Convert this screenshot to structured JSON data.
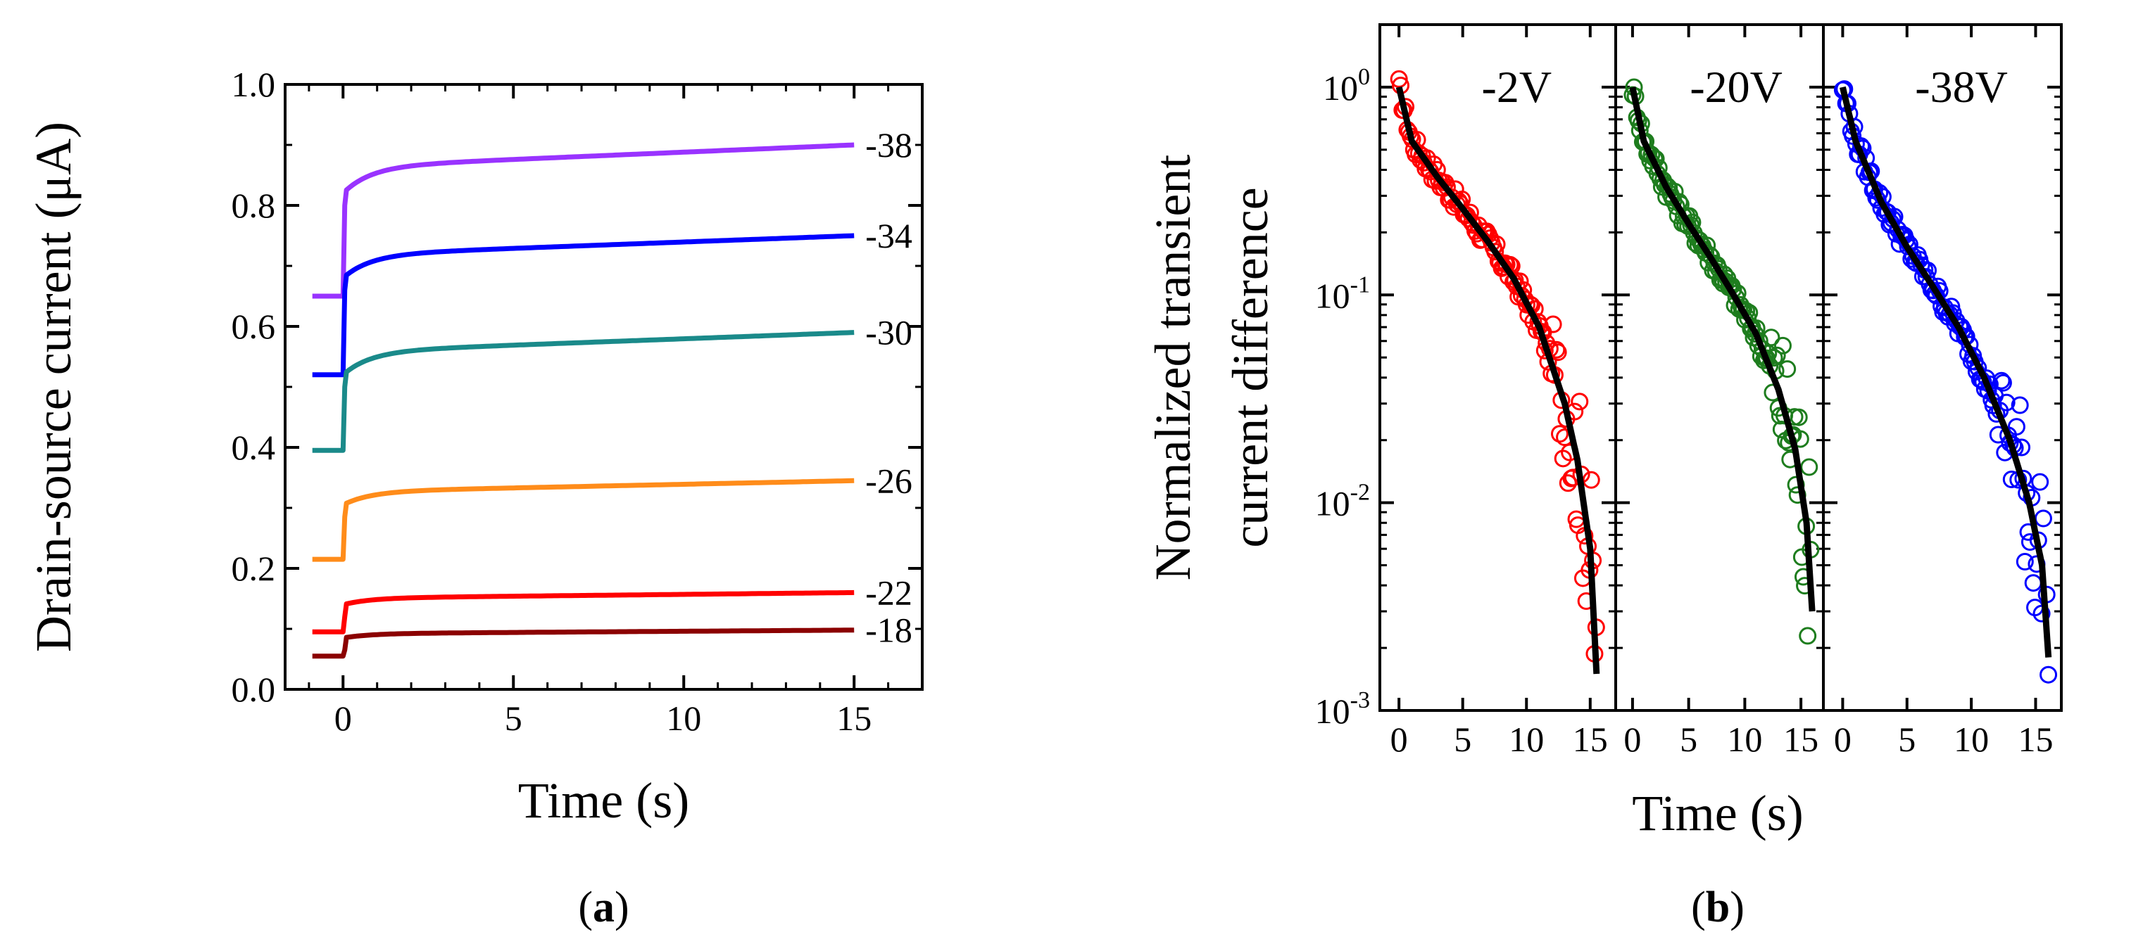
{
  "chart_data": [
    {
      "type": "line",
      "panel": "a",
      "caption": {
        "open": "(",
        "letter": "a",
        "close": ")"
      },
      "xlabel": "Time (s)",
      "ylabel": "Drain-source current (μA)",
      "xlim": [
        -1.7,
        17
      ],
      "ylim": [
        0.0,
        1.0
      ],
      "xticks": [
        0,
        5,
        10,
        15
      ],
      "xtick_labels": [
        "0",
        "5",
        "10",
        "15"
      ],
      "yticks": [
        0.0,
        0.2,
        0.4,
        0.6,
        0.8,
        1.0
      ],
      "ytick_labels": [
        "0.0",
        "0.2",
        "0.4",
        "0.6",
        "0.8",
        "1.0"
      ],
      "series": [
        {
          "name": "-38",
          "label": "-38",
          "color": "#9933ff",
          "baseline": 0.65,
          "jump_to": 0.82,
          "final": 0.9
        },
        {
          "name": "-34",
          "label": "-34",
          "color": "#0000ff",
          "baseline": 0.52,
          "jump_to": 0.68,
          "final": 0.75
        },
        {
          "name": "-30",
          "label": "-30",
          "color": "#1a8a8a",
          "baseline": 0.395,
          "jump_to": 0.52,
          "final": 0.59
        },
        {
          "name": "-26",
          "label": "-26",
          "color": "#ff8c1a",
          "baseline": 0.215,
          "jump_to": 0.305,
          "final": 0.345
        },
        {
          "name": "-22",
          "label": "-22",
          "color": "#ff0000",
          "baseline": 0.095,
          "jump_to": 0.14,
          "final": 0.16
        },
        {
          "name": "-18",
          "label": "-18",
          "color": "#8b0000",
          "baseline": 0.055,
          "jump_to": 0.085,
          "final": 0.098
        }
      ],
      "legend": "inline labels at right end of each curve"
    },
    {
      "type": "scatter",
      "panel": "b",
      "caption": {
        "open": "(",
        "letter": "b",
        "close": ")"
      },
      "xlabel": "Time (s)",
      "ylabel_lines": [
        "Normalized transient",
        "current difference"
      ],
      "yscale": "log",
      "ylim": [
        0.001,
        2.0
      ],
      "yticks": [
        0.001,
        0.01,
        0.1,
        1
      ],
      "ytick_labels": [
        {
          "base": "10",
          "exp": "-3"
        },
        {
          "base": "10",
          "exp": "-2"
        },
        {
          "base": "10",
          "exp": "-1"
        },
        {
          "base": "10",
          "exp": "0"
        }
      ],
      "xlim": [
        -1.5,
        17
      ],
      "xticks": [
        0,
        5,
        10,
        15
      ],
      "xtick_labels": [
        "0",
        "5",
        "10",
        "15"
      ],
      "fit_color": "#000000",
      "subpanels": [
        {
          "label": "-2V",
          "color": "#ff0000",
          "end_time": 15.5,
          "fit": [
            [
              0,
              1.0
            ],
            [
              1,
              0.55
            ],
            [
              3,
              0.37
            ],
            [
              5,
              0.26
            ],
            [
              7,
              0.18
            ],
            [
              9,
              0.12
            ],
            [
              11,
              0.07
            ],
            [
              13,
              0.03
            ],
            [
              14,
              0.016
            ],
            [
              15,
              0.006
            ],
            [
              15.5,
              0.0015
            ]
          ]
        },
        {
          "label": "-20V",
          "color": "#1e7d1e",
          "end_time": 16.0,
          "fit": [
            [
              0,
              1.0
            ],
            [
              1,
              0.55
            ],
            [
              3,
              0.33
            ],
            [
              5,
              0.22
            ],
            [
              7,
              0.15
            ],
            [
              9,
              0.1
            ],
            [
              11,
              0.065
            ],
            [
              13,
              0.035
            ],
            [
              14.5,
              0.018
            ],
            [
              15.5,
              0.008
            ],
            [
              16,
              0.003
            ]
          ]
        },
        {
          "label": "-38V",
          "color": "#0000ff",
          "end_time": 16.0,
          "fit": [
            [
              0,
              1.0
            ],
            [
              1,
              0.55
            ],
            [
              3,
              0.28
            ],
            [
              5,
              0.17
            ],
            [
              7,
              0.11
            ],
            [
              9,
              0.07
            ],
            [
              11,
              0.04
            ],
            [
              13,
              0.02
            ],
            [
              14.5,
              0.01
            ],
            [
              15.5,
              0.005
            ],
            [
              16,
              0.0018
            ]
          ]
        }
      ]
    }
  ]
}
